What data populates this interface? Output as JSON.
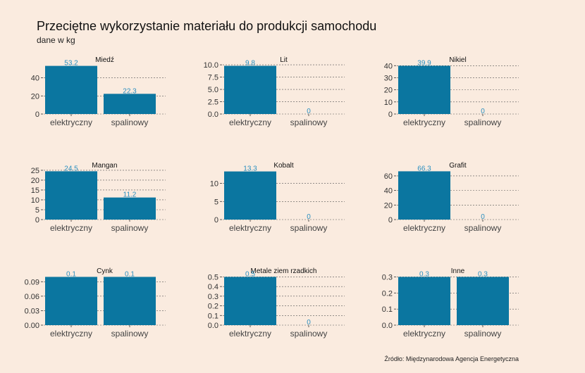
{
  "title": "Przeciętne wykorzystanie materiału do produkcji samochodu",
  "subtitle": "dane w kg",
  "source": "Źródło: Międzynarodowa Agencja Energetyczna",
  "colors": {
    "bar": "#0b76a0",
    "label": "#2a8fc0",
    "background": "#faebdf",
    "grid": "#555555"
  },
  "chart_data": [
    {
      "type": "bar",
      "title": "Miedź",
      "categories": [
        "elektryczny",
        "spalinowy"
      ],
      "values": [
        53.2,
        22.3
      ],
      "value_labels": [
        "53.2",
        "22.3"
      ],
      "ylim": [
        0,
        56
      ],
      "yticks": [
        0,
        20,
        40
      ],
      "ytick_labels": [
        "0",
        "20",
        "40"
      ],
      "grid": true
    },
    {
      "type": "bar",
      "title": "Lit",
      "categories": [
        "elektryczny",
        "spalinowy"
      ],
      "values": [
        9.8,
        0
      ],
      "value_labels": [
        "9.8",
        "0"
      ],
      "ylim": [
        0,
        10.3
      ],
      "yticks": [
        0,
        2.5,
        5,
        7.5,
        10
      ],
      "ytick_labels": [
        "0.0",
        "2.5",
        "5.0",
        "7.5",
        "10.0"
      ],
      "grid": true
    },
    {
      "type": "bar",
      "title": "Nikiel",
      "categories": [
        "elektryczny",
        "spalinowy"
      ],
      "values": [
        39.9,
        0
      ],
      "value_labels": [
        "39.9",
        "0"
      ],
      "ylim": [
        0,
        41.9
      ],
      "yticks": [
        0,
        10,
        20,
        30,
        40
      ],
      "ytick_labels": [
        "0",
        "10",
        "20",
        "30",
        "40"
      ],
      "grid": true
    },
    {
      "type": "bar",
      "title": "Mangan",
      "categories": [
        "elektryczny",
        "spalinowy"
      ],
      "values": [
        24.5,
        11.2
      ],
      "value_labels": [
        "24.5",
        "11.2"
      ],
      "ylim": [
        0,
        25.7
      ],
      "yticks": [
        0,
        5,
        10,
        15,
        20,
        25
      ],
      "ytick_labels": [
        "0",
        "5",
        "10",
        "15",
        "20",
        "25"
      ],
      "grid": true
    },
    {
      "type": "bar",
      "title": "Kobalt",
      "categories": [
        "elektryczny",
        "spalinowy"
      ],
      "values": [
        13.3,
        0
      ],
      "value_labels": [
        "13.3",
        "0"
      ],
      "ylim": [
        0,
        14
      ],
      "yticks": [
        0,
        5,
        10
      ],
      "ytick_labels": [
        "0",
        "5",
        "10"
      ],
      "grid": true
    },
    {
      "type": "bar",
      "title": "Grafit",
      "categories": [
        "elektryczny",
        "spalinowy"
      ],
      "values": [
        66.3,
        0
      ],
      "value_labels": [
        "66.3",
        "0"
      ],
      "ylim": [
        0,
        69.6
      ],
      "yticks": [
        0,
        20,
        40,
        60
      ],
      "ytick_labels": [
        "0",
        "20",
        "40",
        "60"
      ],
      "grid": true
    },
    {
      "type": "bar",
      "title": "Cynk",
      "categories": [
        "elektryczny",
        "spalinowy"
      ],
      "values": [
        0.1,
        0.1
      ],
      "value_labels": [
        "0.1",
        "0.1"
      ],
      "ylim": [
        0,
        0.105
      ],
      "yticks": [
        0,
        0.03,
        0.06,
        0.09
      ],
      "ytick_labels": [
        "0.00",
        "0.03",
        "0.06",
        "0.09"
      ],
      "grid": true
    },
    {
      "type": "bar",
      "title": "Metale ziem rzadkich",
      "categories": [
        "elektryczny",
        "spalinowy"
      ],
      "values": [
        0.5,
        0
      ],
      "value_labels": [
        "0.5",
        "0"
      ],
      "ylim": [
        0,
        0.525
      ],
      "yticks": [
        0,
        0.1,
        0.2,
        0.3,
        0.4,
        0.5
      ],
      "ytick_labels": [
        "0.0",
        "0.1",
        "0.2",
        "0.3",
        "0.4",
        "0.5"
      ],
      "grid": true
    },
    {
      "type": "bar",
      "title": "Inne",
      "categories": [
        "elektryczny",
        "spalinowy"
      ],
      "values": [
        0.3,
        0.3
      ],
      "value_labels": [
        "0.3",
        "0.3"
      ],
      "ylim": [
        0,
        0.315
      ],
      "yticks": [
        0,
        0.1,
        0.2,
        0.3
      ],
      "ytick_labels": [
        "0.0",
        "0.1",
        "0.2",
        "0.3"
      ],
      "grid": true
    }
  ]
}
